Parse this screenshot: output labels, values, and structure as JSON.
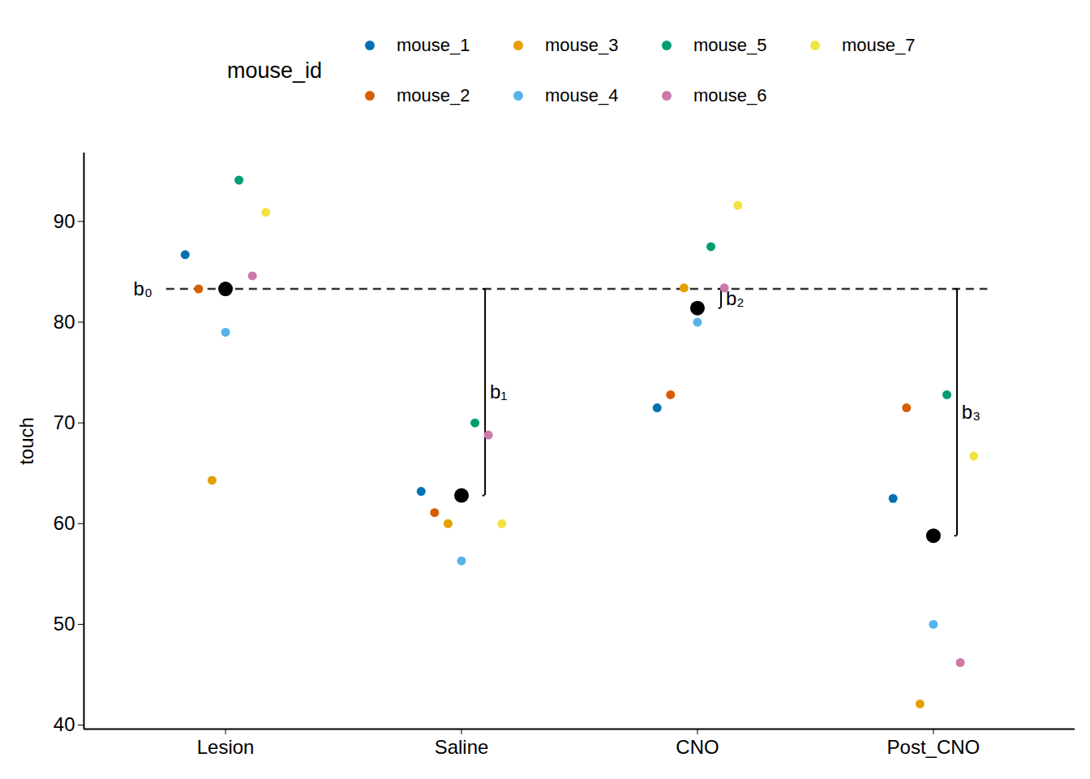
{
  "chart_data": {
    "type": "scatter",
    "y_label": "touch",
    "legend_title": "mouse_id",
    "legend": "top",
    "categories": [
      "Lesion",
      "Saline",
      "CNO",
      "Post_CNO"
    ],
    "series": [
      {
        "name": "mouse_1",
        "color": "#0072B2",
        "values": [
          86.7,
          63.2,
          71.5,
          62.5
        ]
      },
      {
        "name": "mouse_2",
        "color": "#D55E00",
        "values": [
          83.3,
          61.1,
          72.8,
          71.5
        ]
      },
      {
        "name": "mouse_3",
        "color": "#E69F00",
        "values": [
          64.3,
          60.0,
          83.4,
          42.1
        ]
      },
      {
        "name": "mouse_4",
        "color": "#56B4E9",
        "values": [
          79.0,
          56.3,
          80.0,
          50.0
        ]
      },
      {
        "name": "mouse_5",
        "color": "#009E73",
        "values": [
          94.1,
          70.0,
          87.5,
          72.8
        ]
      },
      {
        "name": "mouse_6",
        "color": "#CC79A7",
        "values": [
          84.6,
          68.8,
          83.4,
          46.2
        ]
      },
      {
        "name": "mouse_7",
        "color": "#F0E442",
        "values": [
          90.9,
          60.0,
          91.6,
          66.7
        ]
      }
    ],
    "means": [
      83.3,
      62.8,
      81.4,
      58.8
    ],
    "means_color": "#000000",
    "annotations": [
      "b₀",
      "b₁",
      "b₂",
      "b₃"
    ],
    "line_style": "dashed",
    "ylim": [
      39.6,
      96.8
    ],
    "yticks": [
      40,
      50,
      60,
      70,
      80,
      90
    ]
  }
}
